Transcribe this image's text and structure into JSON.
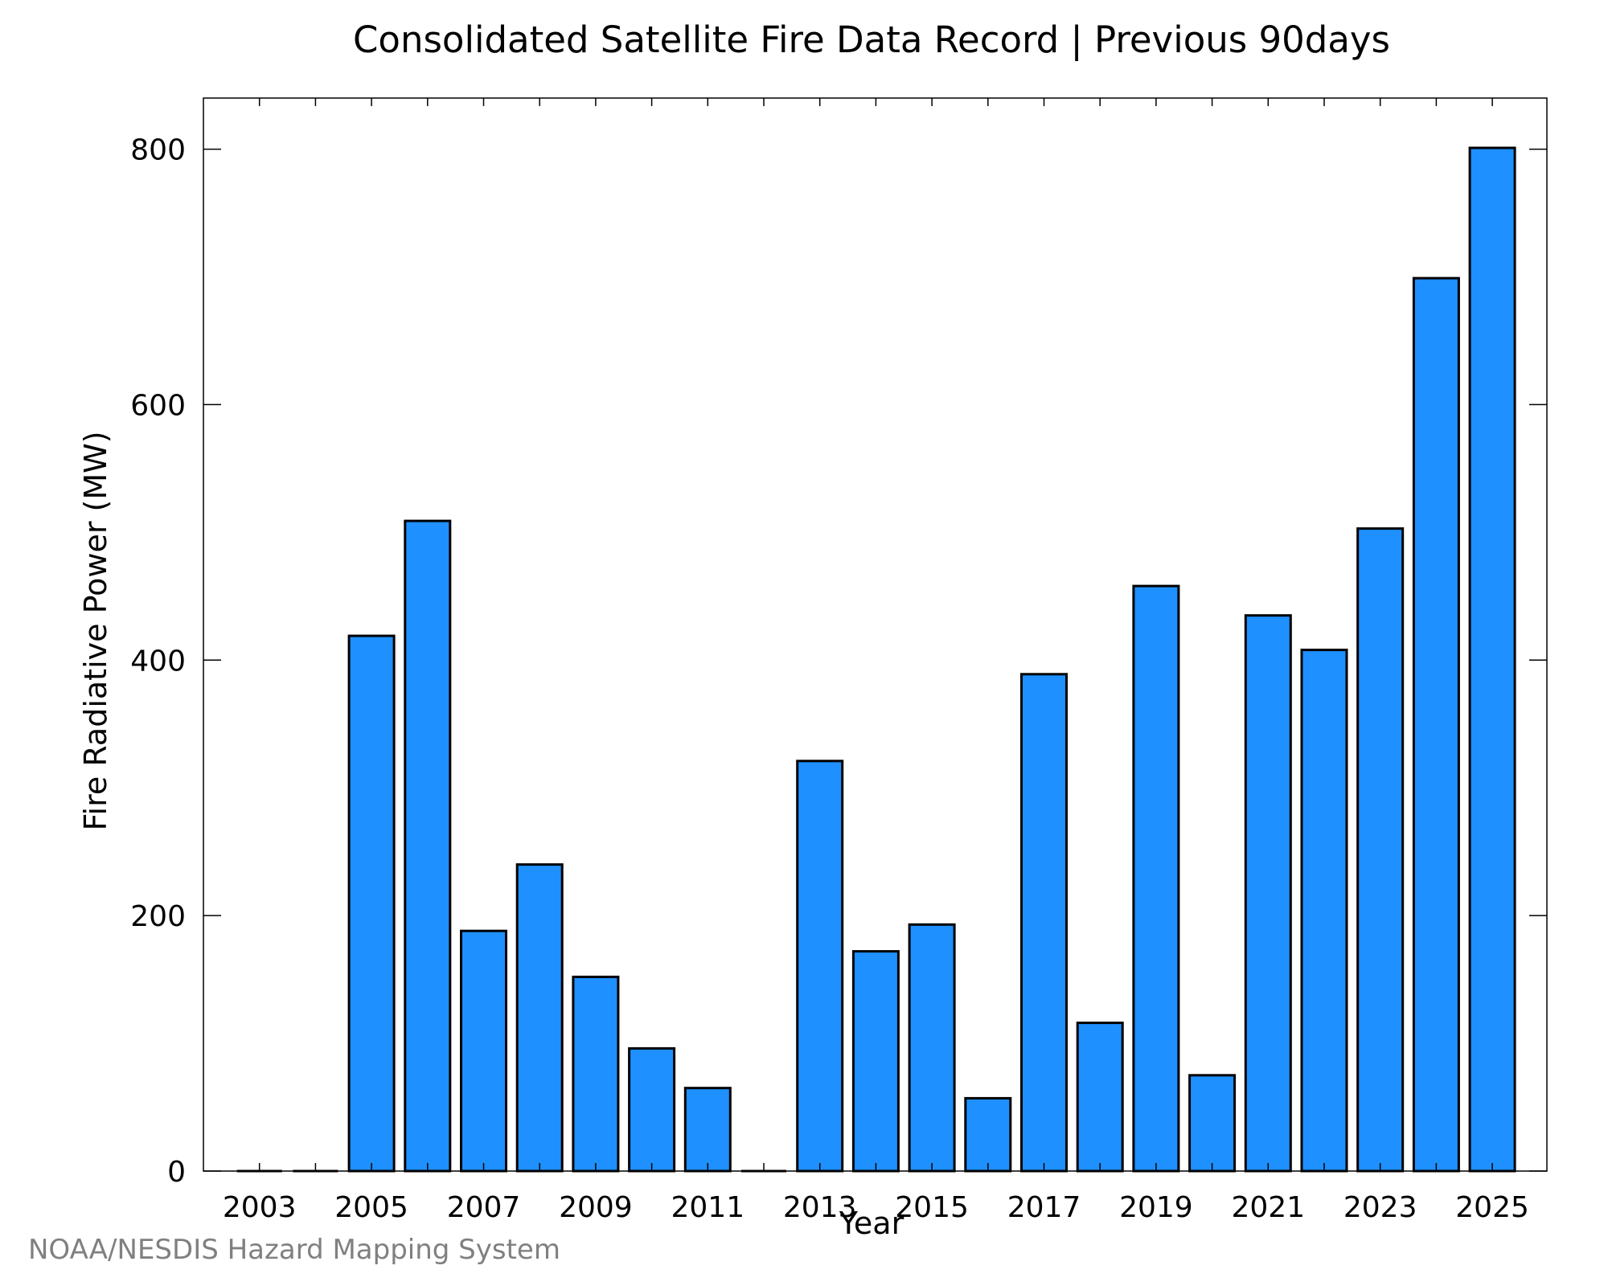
{
  "chart_data": {
    "type": "bar",
    "title": "Consolidated Satellite Fire Data Record | Previous 90days",
    "xlabel": "Year",
    "ylabel": "Fire Radiative Power (MW)",
    "categories": [
      "2003",
      "2004",
      "2005",
      "2006",
      "2007",
      "2008",
      "2009",
      "2010",
      "2011",
      "2012",
      "2013",
      "2014",
      "2015",
      "2016",
      "2017",
      "2018",
      "2019",
      "2020",
      "2021",
      "2022",
      "2023",
      "2024",
      "2025"
    ],
    "values": [
      0,
      0,
      419,
      509,
      188,
      240,
      152,
      96,
      65,
      0,
      321,
      172,
      193,
      57,
      389,
      116,
      458,
      75,
      435,
      408,
      503,
      699,
      801
    ],
    "xticks": [
      "2003",
      "2005",
      "2007",
      "2009",
      "2011",
      "2013",
      "2015",
      "2017",
      "2019",
      "2021",
      "2023",
      "2025"
    ],
    "yticks": [
      "0",
      "200",
      "400",
      "600",
      "800"
    ],
    "ylim": [
      0,
      840
    ],
    "grid": false,
    "bar_color": "#1e90ff",
    "edge_color": "#000000"
  },
  "footer": {
    "credit": "NOAA/NESDIS Hazard Mapping System"
  }
}
